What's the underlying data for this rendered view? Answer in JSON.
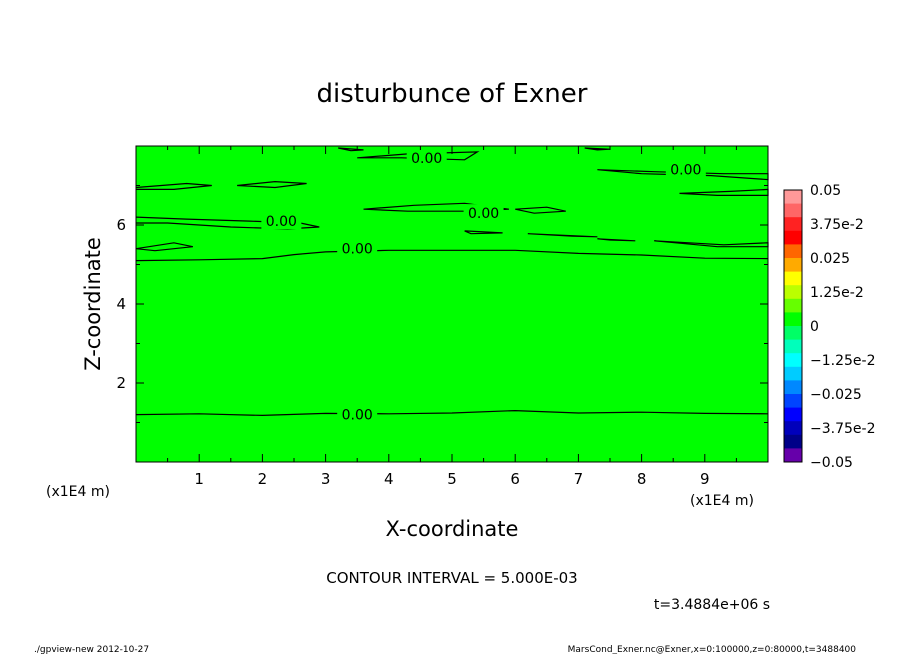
{
  "chart_data": {
    "type": "contour",
    "title": "disturbunce of Exner",
    "xlabel": "X-coordinate",
    "ylabel": "Z-coordinate",
    "x_unit_label": "(x1E4 m)",
    "y_unit_label": "(x1E4 m)",
    "xlim": [
      0,
      10
    ],
    "ylim": [
      0,
      8
    ],
    "x_ticks": [
      1,
      2,
      3,
      4,
      5,
      6,
      7,
      8,
      9
    ],
    "y_ticks": [
      2,
      4,
      6
    ],
    "fill_color": "#00ff00",
    "contour_interval_text": "CONTOUR INTERVAL = 5.000E-03",
    "time_text": "t=3.4884e+06 s",
    "contour_labels": [
      {
        "text": "0.00",
        "x": 4.6,
        "z": 7.7
      },
      {
        "text": "0.00",
        "x": 8.7,
        "z": 7.4
      },
      {
        "text": "0.00",
        "x": 2.3,
        "z": 6.1
      },
      {
        "text": "0.00",
        "x": 5.5,
        "z": 6.3
      },
      {
        "text": "0.00",
        "x": 3.5,
        "z": 5.4
      },
      {
        "text": "0.00",
        "x": 3.5,
        "z": 1.2
      }
    ],
    "contour_lines": [
      [
        [
          0,
          1.2
        ],
        [
          1,
          1.22
        ],
        [
          2,
          1.18
        ],
        [
          3,
          1.23
        ],
        [
          4,
          1.22
        ],
        [
          5,
          1.24
        ],
        [
          6,
          1.3
        ],
        [
          7,
          1.24
        ],
        [
          8,
          1.26
        ],
        [
          9,
          1.23
        ],
        [
          10,
          1.22
        ]
      ],
      [
        [
          0,
          5.1
        ],
        [
          1,
          5.12
        ],
        [
          2,
          5.15
        ],
        [
          2.5,
          5.25
        ],
        [
          3,
          5.32
        ],
        [
          4,
          5.36
        ],
        [
          5,
          5.36
        ],
        [
          6,
          5.36
        ],
        [
          7,
          5.28
        ],
        [
          8,
          5.24
        ],
        [
          9,
          5.16
        ],
        [
          10,
          5.15
        ]
      ],
      [
        [
          0,
          5.4
        ],
        [
          0.6,
          5.55
        ],
        [
          0.9,
          5.45
        ],
        [
          0.3,
          5.35
        ],
        [
          0,
          5.4
        ]
      ],
      [
        [
          0,
          6.2
        ],
        [
          0.8,
          6.15
        ],
        [
          1.8,
          6.1
        ],
        [
          2.6,
          6.05
        ],
        [
          2.9,
          5.95
        ],
        [
          2.4,
          5.9
        ],
        [
          1.5,
          5.95
        ],
        [
          0.5,
          6.05
        ],
        [
          0,
          6.05
        ]
      ],
      [
        [
          0,
          6.95
        ],
        [
          0.8,
          7.05
        ],
        [
          1.2,
          7.0
        ],
        [
          0.6,
          6.9
        ],
        [
          0,
          6.9
        ]
      ],
      [
        [
          1.6,
          7.0
        ],
        [
          2.2,
          7.1
        ],
        [
          2.7,
          7.05
        ],
        [
          2.2,
          6.95
        ],
        [
          1.6,
          7.0
        ]
      ],
      [
        [
          3.6,
          6.4
        ],
        [
          4.4,
          6.5
        ],
        [
          5.2,
          6.55
        ],
        [
          5.9,
          6.4
        ],
        [
          5.3,
          6.35
        ],
        [
          4.3,
          6.35
        ],
        [
          3.6,
          6.4
        ]
      ],
      [
        [
          6.0,
          6.4
        ],
        [
          6.5,
          6.45
        ],
        [
          6.8,
          6.35
        ],
        [
          6.3,
          6.3
        ],
        [
          6.0,
          6.4
        ]
      ],
      [
        [
          5.2,
          5.85
        ],
        [
          5.8,
          5.8
        ],
        [
          5.3,
          5.78
        ],
        [
          5.2,
          5.85
        ]
      ],
      [
        [
          6.2,
          5.78
        ],
        [
          6.9,
          5.72
        ],
        [
          7.3,
          5.7
        ],
        [
          6.6,
          5.75
        ],
        [
          6.2,
          5.78
        ]
      ],
      [
        [
          7.3,
          5.65
        ],
        [
          7.9,
          5.6
        ],
        [
          7.5,
          5.62
        ],
        [
          7.3,
          5.65
        ]
      ],
      [
        [
          8.2,
          5.6
        ],
        [
          9.3,
          5.5
        ],
        [
          10,
          5.55
        ],
        [
          10,
          5.45
        ],
        [
          9.2,
          5.45
        ],
        [
          8.2,
          5.6
        ]
      ],
      [
        [
          8.6,
          6.8
        ],
        [
          9.4,
          6.85
        ],
        [
          10,
          6.9
        ],
        [
          10,
          6.75
        ],
        [
          9.2,
          6.75
        ],
        [
          8.6,
          6.8
        ]
      ],
      [
        [
          3.5,
          7.7
        ],
        [
          4.3,
          7.8
        ],
        [
          5.4,
          7.85
        ],
        [
          5.2,
          7.65
        ],
        [
          4.2,
          7.7
        ],
        [
          3.5,
          7.7
        ]
      ],
      [
        [
          7.3,
          7.4
        ],
        [
          8.2,
          7.35
        ],
        [
          9.3,
          7.3
        ],
        [
          10,
          7.3
        ],
        [
          10,
          7.15
        ],
        [
          9.1,
          7.25
        ],
        [
          8.0,
          7.3
        ],
        [
          7.3,
          7.4
        ]
      ],
      [
        [
          3.2,
          7.95
        ],
        [
          3.6,
          7.9
        ],
        [
          3.4,
          7.88
        ],
        [
          3.2,
          7.95
        ]
      ],
      [
        [
          7.1,
          7.95
        ],
        [
          7.5,
          7.92
        ],
        [
          7.3,
          7.9
        ],
        [
          7.1,
          7.95
        ]
      ]
    ],
    "colorbar": {
      "labels": [
        "0.05",
        "3.75e-2",
        "0.025",
        "1.25e-2",
        "0",
        "−1.25e-2",
        "−0.025",
        "−3.75e-2",
        "−0.05"
      ],
      "colors": [
        "#ff9999",
        "#ff6666",
        "#ff2222",
        "#ff0000",
        "#ff6600",
        "#ffaa00",
        "#ffff00",
        "#bbff00",
        "#66ff00",
        "#00ff00",
        "#00ff66",
        "#00ffbb",
        "#00ffff",
        "#00ccff",
        "#0088ff",
        "#0044ff",
        "#0000ff",
        "#0000bb",
        "#000088",
        "#6600aa"
      ]
    }
  },
  "footer": {
    "left": "./gpview-new  2012-10-27",
    "right": "MarsCond_Exner.nc@Exner,x=0:100000,z=0:80000,t=3488400"
  }
}
